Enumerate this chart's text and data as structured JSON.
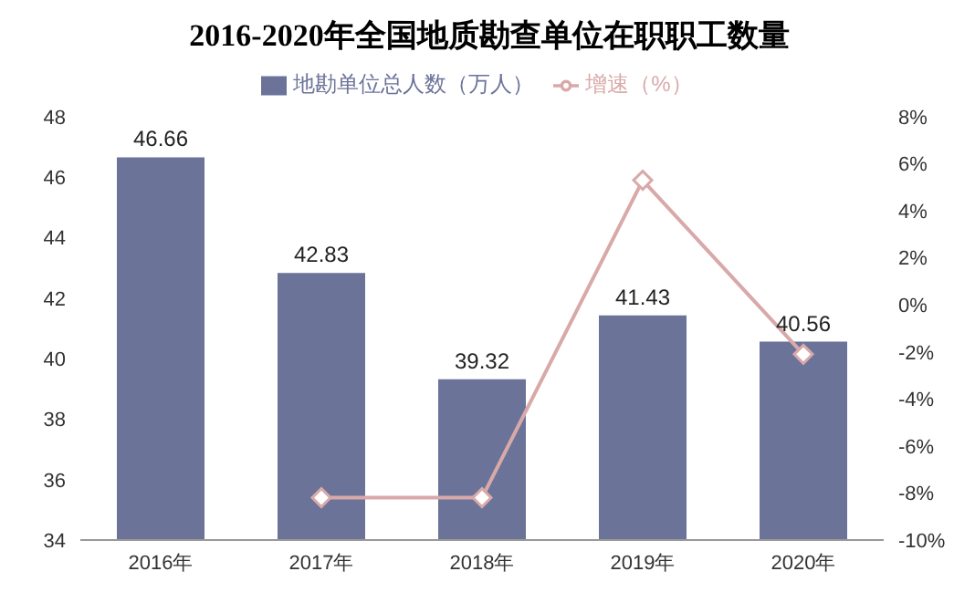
{
  "chart_data": {
    "type": "bar",
    "title": "2016-2020年全国地质勘查单位在职职工数量",
    "categories": [
      "2016年",
      "2017年",
      "2018年",
      "2019年",
      "2020年"
    ],
    "series": [
      {
        "name": "地勘单位总人数（万人）",
        "color": "#6b7399",
        "values": [
          46.66,
          42.83,
          39.32,
          41.43,
          40.56
        ],
        "value_labels": [
          "46.66",
          "42.83",
          "39.32",
          "41.43",
          "40.56"
        ]
      },
      {
        "name": "增速（%）",
        "type": "line",
        "axis": "y2",
        "color": "#d9a9a9",
        "values": [
          null,
          -8.2,
          -8.2,
          5.3,
          -2.1
        ],
        "marker": "diamond"
      }
    ],
    "ylim": [
      34,
      48
    ],
    "yticks": [
      34,
      36,
      38,
      40,
      42,
      44,
      46,
      48
    ],
    "y2lim": [
      -10,
      8
    ],
    "y2ticks": [
      {
        "value": -10,
        "label": "-10%"
      },
      {
        "value": -8,
        "label": "-8%"
      },
      {
        "value": -6,
        "label": "-6%"
      },
      {
        "value": -4,
        "label": "-4%"
      },
      {
        "value": -2,
        "label": "-2%"
      },
      {
        "value": 0,
        "label": "0%"
      },
      {
        "value": 2,
        "label": "2%"
      },
      {
        "value": 4,
        "label": "4%"
      },
      {
        "value": 6,
        "label": "6%"
      },
      {
        "value": 8,
        "label": "8%"
      }
    ],
    "legend": "top"
  }
}
